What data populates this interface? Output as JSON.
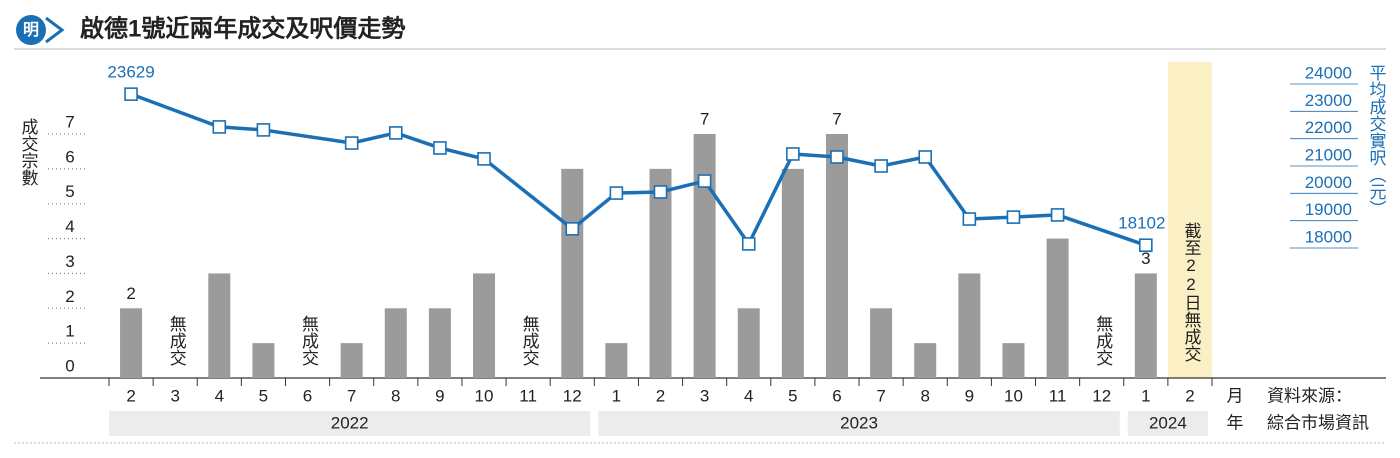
{
  "chart_data": {
    "type": "bar-line",
    "title": "啟德1號近兩年成交及呎價走勢",
    "logo_text": "明",
    "categories": [
      "2",
      "3",
      "4",
      "5",
      "6",
      "7",
      "8",
      "9",
      "10",
      "11",
      "12",
      "1",
      "2",
      "3",
      "4",
      "5",
      "6",
      "7",
      "8",
      "9",
      "10",
      "11",
      "12",
      "1",
      "2"
    ],
    "year_groups": [
      {
        "label": "2022",
        "count": 11
      },
      {
        "label": "2023",
        "count": 12
      },
      {
        "label": "2024",
        "count": 2
      }
    ],
    "x_label_month": "月",
    "x_label_year": "年",
    "source_label": "資料來源：",
    "source": "綜合市場資訊",
    "y_label": "成交宗數",
    "y2_label": "平均成交實呎（元）",
    "ylim": [
      0,
      7
    ],
    "yticks": [
      0,
      1,
      2,
      3,
      4,
      5,
      6,
      7
    ],
    "y2lim": [
      18000,
      24000
    ],
    "y2ticks": [
      18000,
      19000,
      20000,
      21000,
      22000,
      23000,
      24000
    ],
    "series": [
      {
        "name": "成交宗數",
        "kind": "bar",
        "color": "#9b9b9b",
        "values": [
          2,
          0,
          3,
          1,
          0,
          1,
          2,
          2,
          3,
          0,
          6,
          1,
          6,
          7,
          2,
          6,
          7,
          2,
          1,
          3,
          1,
          4,
          0,
          3,
          0
        ],
        "value_labels": [
          "2",
          null,
          null,
          null,
          null,
          null,
          null,
          null,
          null,
          null,
          null,
          null,
          null,
          "7",
          null,
          null,
          "7",
          null,
          null,
          null,
          null,
          null,
          null,
          "3",
          null
        ]
      },
      {
        "name": "平均成交實呎",
        "kind": "line",
        "axis": "y2",
        "color": "#1a6fb5",
        "values": [
          23629,
          null,
          22430,
          22320,
          null,
          21840,
          22210,
          21660,
          21260,
          null,
          18700,
          20010,
          20050,
          20450,
          18150,
          21440,
          21330,
          21000,
          21330,
          19060,
          19130,
          19210,
          null,
          18102,
          null
        ],
        "value_labels": [
          "23629",
          null,
          null,
          null,
          null,
          null,
          null,
          null,
          null,
          null,
          null,
          null,
          null,
          null,
          null,
          null,
          null,
          null,
          null,
          null,
          null,
          null,
          null,
          "18102",
          null
        ]
      }
    ],
    "annotations": [
      {
        "text": "無成交",
        "index": 1
      },
      {
        "text": "無成交",
        "index": 4
      },
      {
        "text": "無成交",
        "index": 9
      },
      {
        "text": "無成交",
        "index": 22
      }
    ],
    "highlight": {
      "index": 24,
      "text": "截至22日無成交",
      "color": "#fbefc6"
    }
  }
}
